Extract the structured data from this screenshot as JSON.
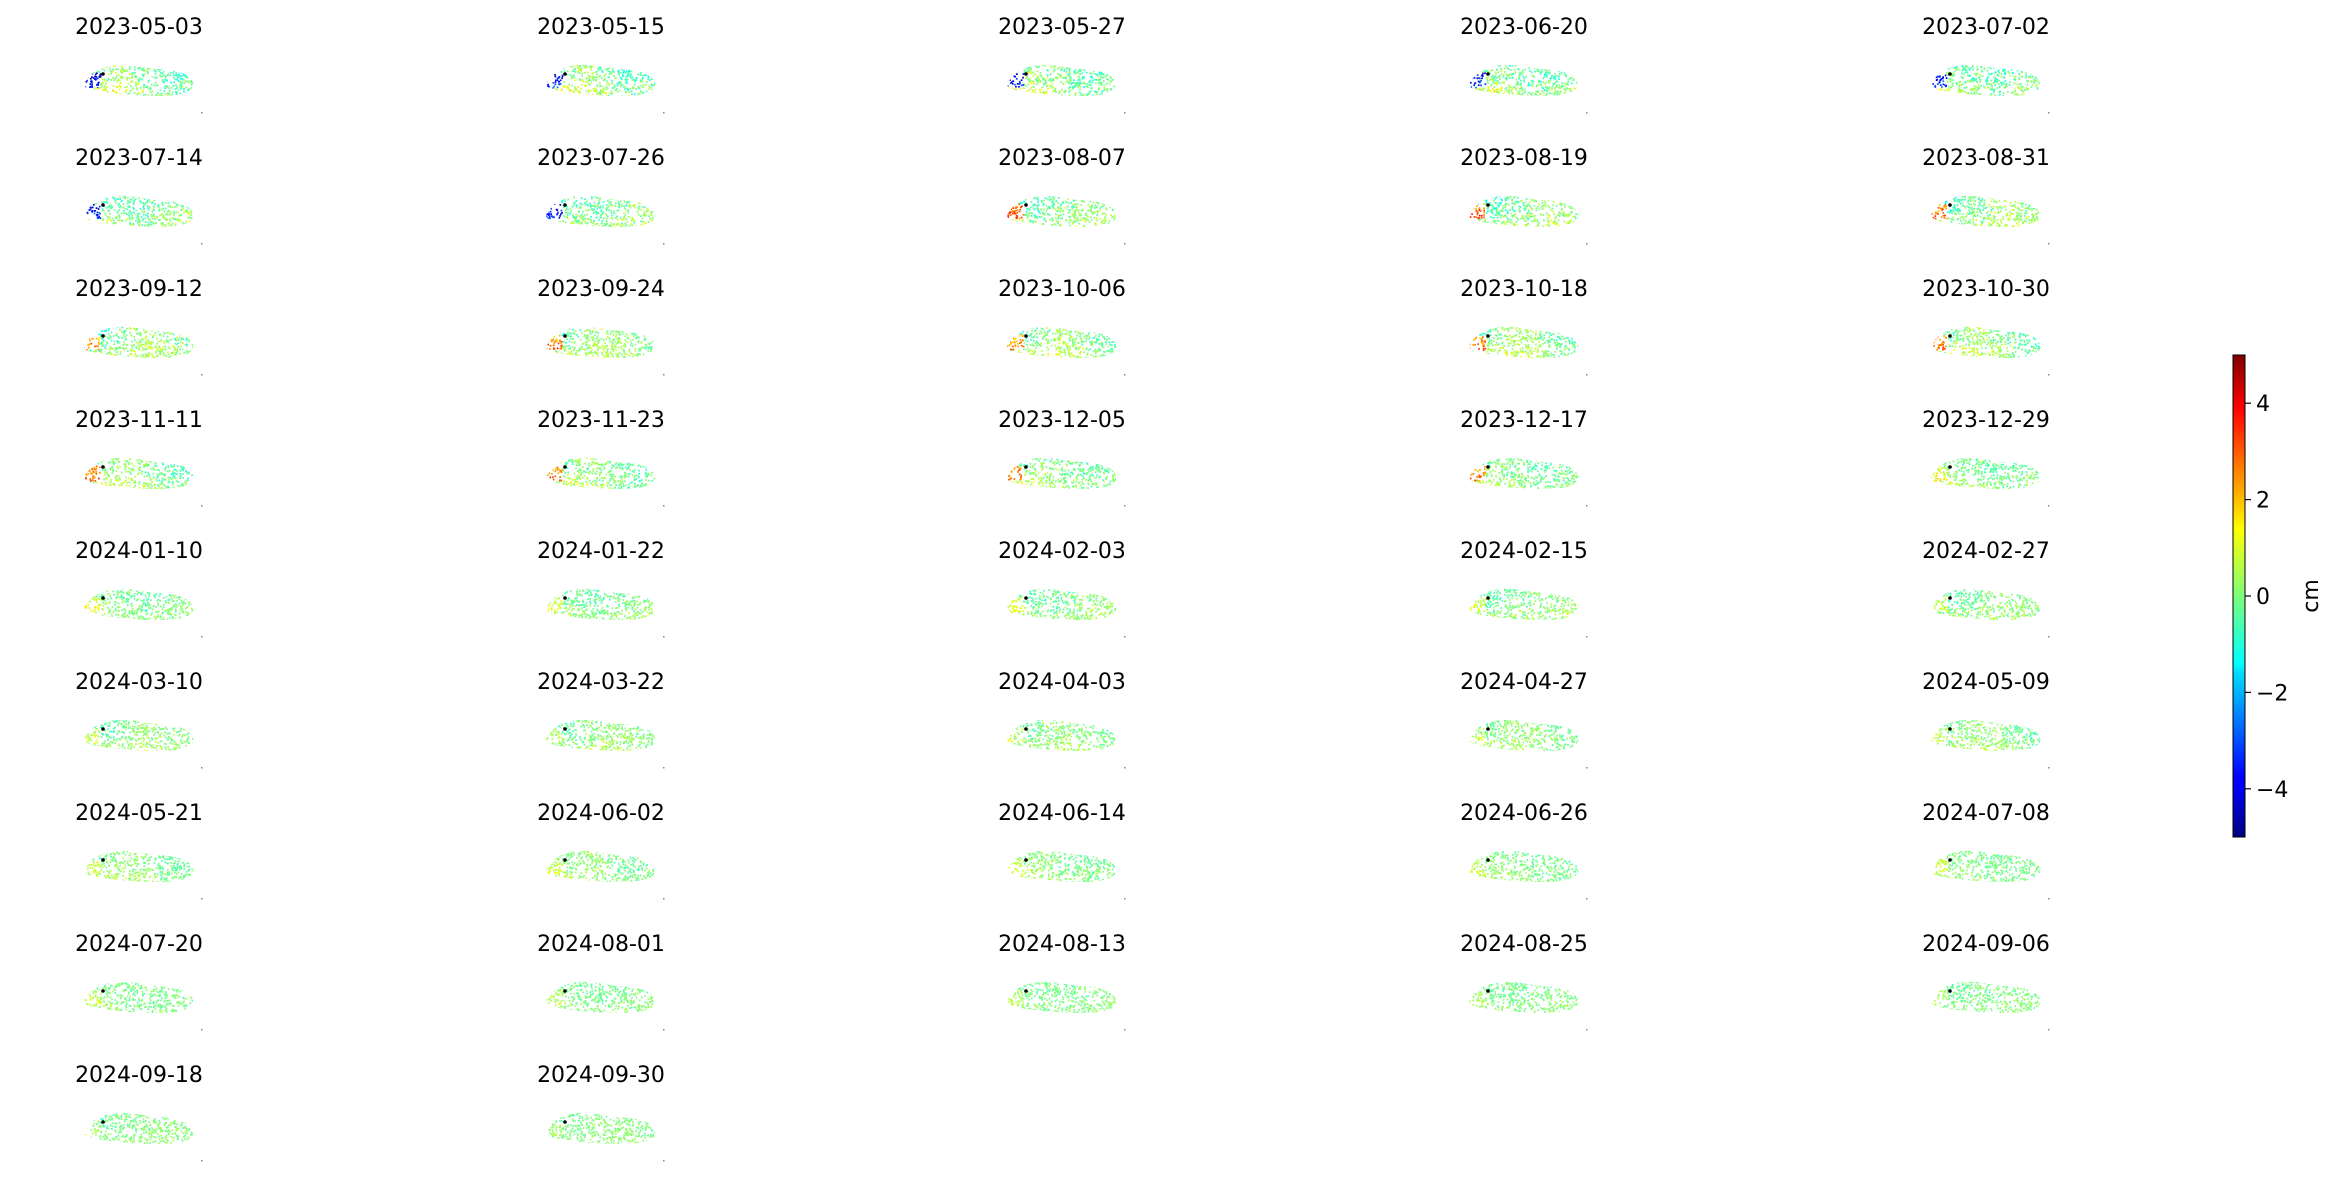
{
  "chart_data": {
    "type": "heatmap",
    "layout": "small-multiples grid, 5 columns",
    "dates": [
      "2023-05-03",
      "2023-05-15",
      "2023-05-27",
      "2023-06-20",
      "2023-07-02",
      "2023-07-14",
      "2023-07-26",
      "2023-08-07",
      "2023-08-19",
      "2023-08-31",
      "2023-09-12",
      "2023-09-24",
      "2023-10-06",
      "2023-10-18",
      "2023-10-30",
      "2023-11-11",
      "2023-11-23",
      "2023-12-05",
      "2023-12-17",
      "2023-12-29",
      "2024-01-10",
      "2024-01-22",
      "2024-02-03",
      "2024-02-15",
      "2024-02-27",
      "2024-03-10",
      "2024-03-22",
      "2024-04-03",
      "2024-04-27",
      "2024-05-09",
      "2024-05-21",
      "2024-06-02",
      "2024-06-14",
      "2024-06-26",
      "2024-07-08",
      "2024-07-20",
      "2024-08-01",
      "2024-08-13",
      "2024-08-25",
      "2024-09-06",
      "2024-09-18",
      "2024-09-30"
    ],
    "colorbar": {
      "colormap": "jet",
      "label": "cm",
      "vmin": -5,
      "vmax": 5,
      "ticks": [
        4,
        2,
        0,
        -2,
        -4
      ],
      "tick_labels": [
        "4",
        "2",
        "0",
        "−2",
        "−4"
      ]
    },
    "axes_visible": false
  }
}
